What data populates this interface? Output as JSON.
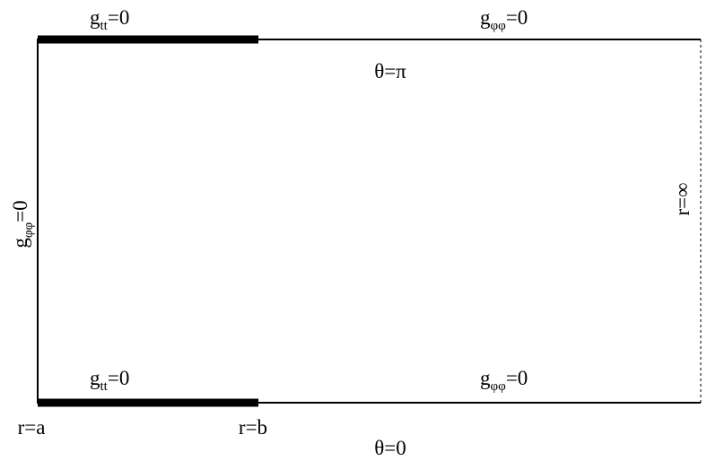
{
  "labels": {
    "top_left": {
      "base": "g",
      "sub": "tt",
      "rest": "=0"
    },
    "top_right": {
      "base": "g",
      "sub": "φφ",
      "rest": "=0"
    },
    "top_theta": "θ=π",
    "left": {
      "base": "g",
      "sub": "φφ",
      "rest": "=0"
    },
    "right": "r=∞",
    "bottom_left": {
      "base": "g",
      "sub": "tt",
      "rest": "=0"
    },
    "bottom_right": {
      "base": "g",
      "sub": "φφ",
      "rest": "=0"
    },
    "r_a": "r=a",
    "r_b": "r=b",
    "bottom_theta": "θ=0"
  }
}
